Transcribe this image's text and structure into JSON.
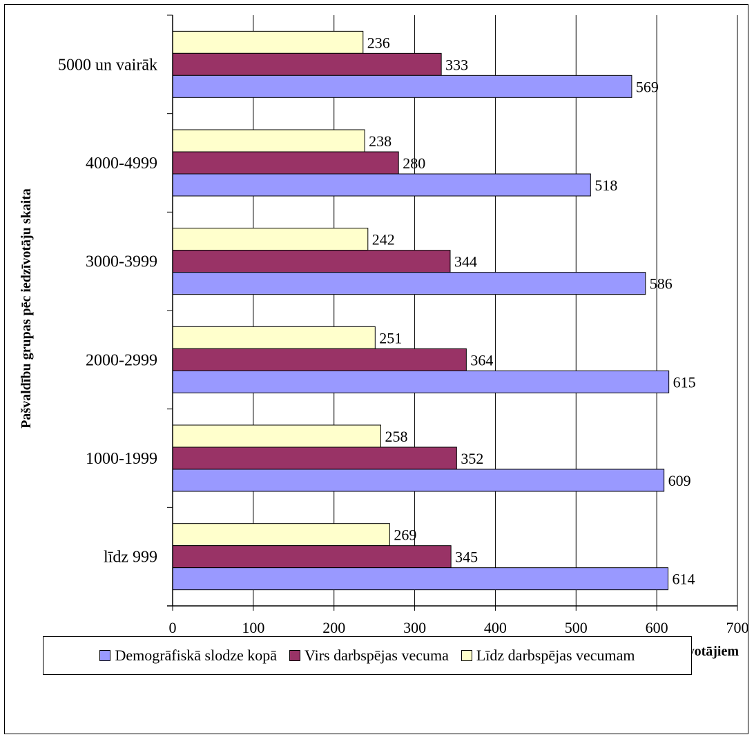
{
  "chart_data": {
    "type": "bar",
    "orientation": "horizontal",
    "categories": [
      "līdz 999",
      "1000-1999",
      "2000-2999",
      "3000-3999",
      "4000-4999",
      "5000 un vairāk"
    ],
    "series": [
      {
        "name": "Demogrāfiskā slodze kopā",
        "color": "#9999ff",
        "values": [
          614,
          609,
          615,
          586,
          518,
          569
        ]
      },
      {
        "name": "Virs darbspējas vecuma",
        "color": "#993366",
        "values": [
          345,
          352,
          364,
          344,
          280,
          333
        ]
      },
      {
        "name": "Līdz darbspējas vecumam",
        "color": "#ffffcc",
        "values": [
          269,
          258,
          251,
          242,
          238,
          236
        ]
      }
    ],
    "xlabel": "Uz 1000 darbspējas vecuma iedzīvotājiem",
    "ylabel": "Pašvaldību grupas pēc iedzīvotāju skaita",
    "xlim": [
      0,
      700
    ],
    "xticks": [
      0,
      100,
      200,
      300,
      400,
      500,
      600,
      700
    ],
    "grid": "vertical",
    "legend": "bottom",
    "data_labels": true
  }
}
